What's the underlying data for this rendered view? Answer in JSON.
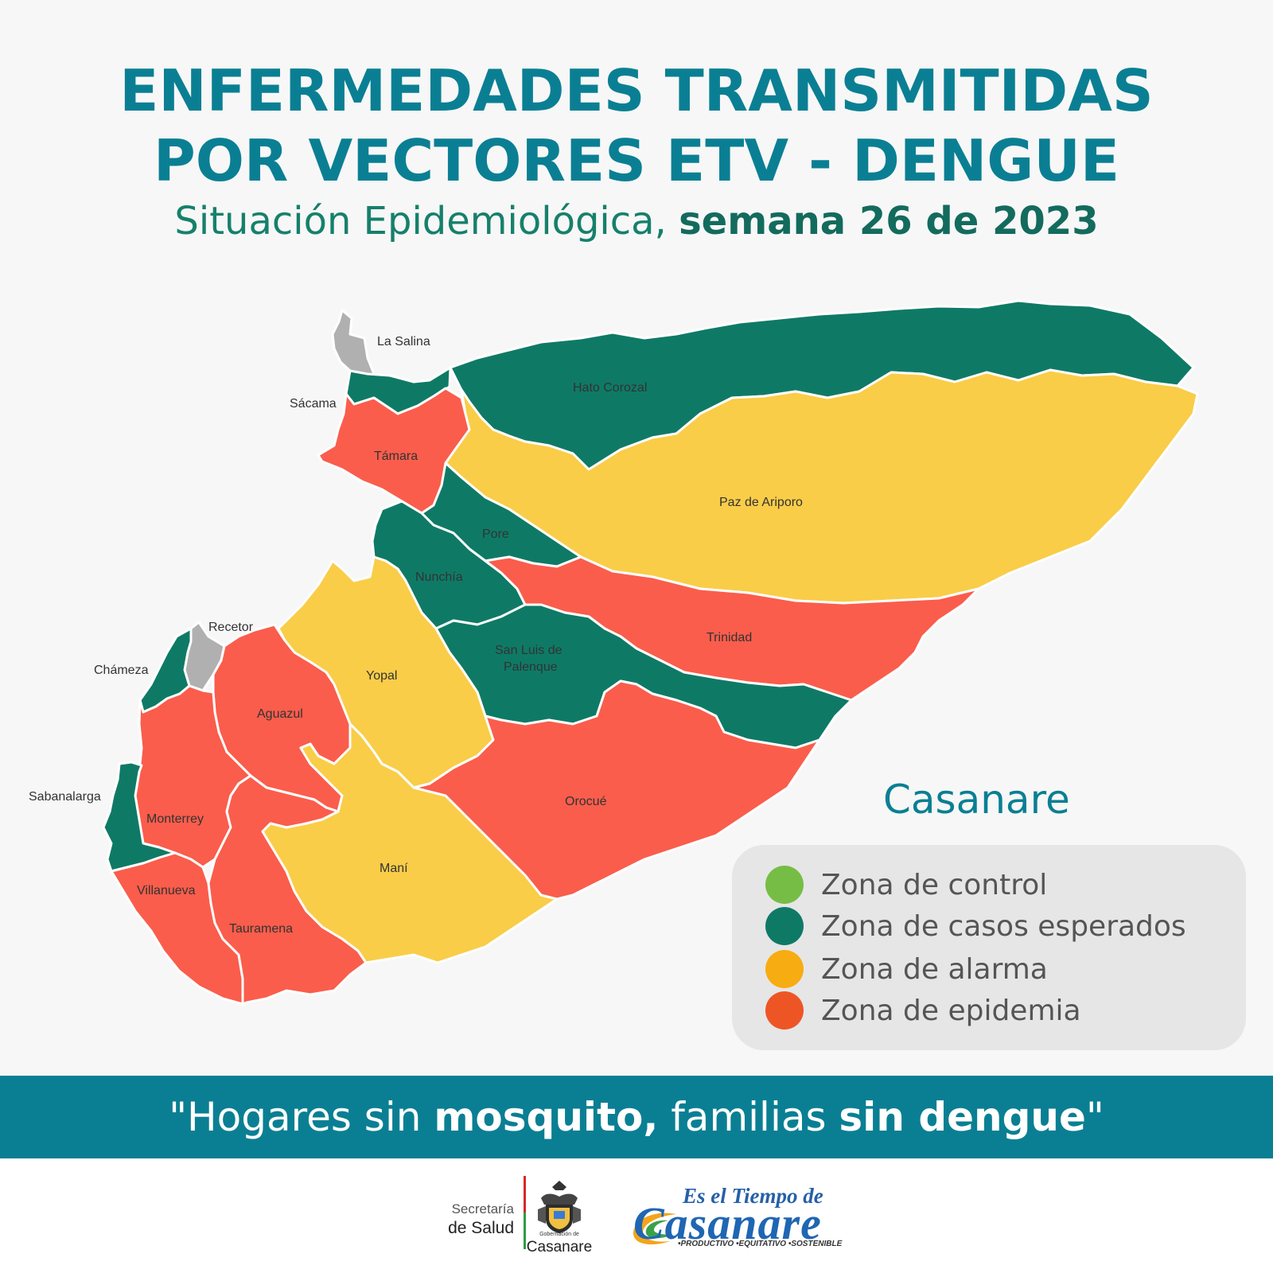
{
  "title": {
    "line1": "ENFERMEDADES TRANSMITIDAS",
    "line2": "POR VECTORES ETV - DENGUE",
    "subtitle_plain": "Situación Epidemiológica, ",
    "subtitle_bold": "semana 26 de 2023"
  },
  "department": "Casanare",
  "legend": [
    {
      "label": "Zona de control",
      "color": "#76bd45"
    },
    {
      "label": "Zona de casos esperados",
      "color": "#0e7a66"
    },
    {
      "label": "Zona de alarma",
      "color": "#f7ac11"
    },
    {
      "label": "Zona de epidemia",
      "color": "#ee5524"
    }
  ],
  "map_colors": {
    "esperados": "#0e7a66",
    "alarma": "#f9cd48",
    "epidemia": "#fa5d4c",
    "sin_dato": "#b0b0b0"
  },
  "municipalities": [
    {
      "name": "La Salina",
      "zone": "sin_dato"
    },
    {
      "name": "Sácama",
      "zone": "esperados"
    },
    {
      "name": "Támara",
      "zone": "epidemia"
    },
    {
      "name": "Hato Corozal",
      "zone": "esperados"
    },
    {
      "name": "Paz de Ariporo",
      "zone": "alarma"
    },
    {
      "name": "Pore",
      "zone": "esperados"
    },
    {
      "name": "Nunchía",
      "zone": "esperados"
    },
    {
      "name": "Trinidad",
      "zone": "epidemia"
    },
    {
      "name": "Recetor",
      "zone": "sin_dato"
    },
    {
      "name": "Chámeza",
      "zone": "esperados"
    },
    {
      "name": "Yopal",
      "zone": "alarma"
    },
    {
      "name": "San Luis de",
      "zone": "esperados"
    },
    {
      "name": "Palenque",
      "zone": "esperados"
    },
    {
      "name": "Aguazul",
      "zone": "epidemia"
    },
    {
      "name": "Orocué",
      "zone": "epidemia"
    },
    {
      "name": "Sabanalarga",
      "zone": "esperados"
    },
    {
      "name": "Monterrey",
      "zone": "epidemia"
    },
    {
      "name": "Maní",
      "zone": "alarma"
    },
    {
      "name": "Villanueva",
      "zone": "epidemia"
    },
    {
      "name": "Tauramena",
      "zone": "epidemia"
    }
  ],
  "slogan": {
    "p1": "\"Hogares sin ",
    "b1": "mosquito,",
    "p2": " familias ",
    "b2": "sin dengue",
    "p3": "\""
  },
  "footer": {
    "secretaria_1": "Secretaría",
    "secretaria_2": "de Salud",
    "gobernacion_small": "Gobernación de",
    "gobernacion_name": "Casanare",
    "esel": "Es el Tiempo de",
    "casanare_logo": "Casanare",
    "tagline": "•PRODUCTIVO •EQUITATIVO •SOSTENIBLE"
  }
}
